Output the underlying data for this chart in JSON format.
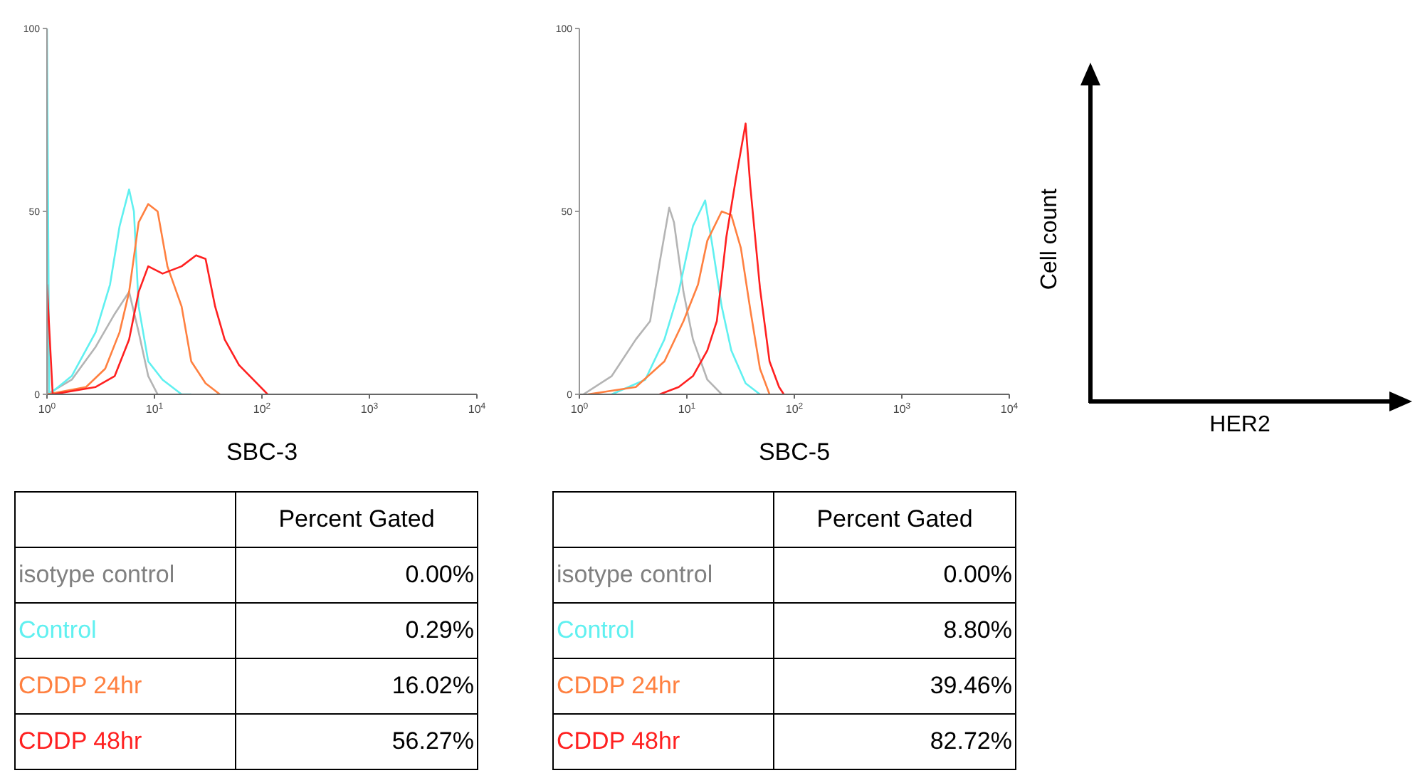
{
  "chart_data": [
    {
      "type": "line",
      "xlabel": "SBC-3",
      "log": "x",
      "xlim": [
        1,
        10000
      ],
      "xticks": [
        {
          "value": 1,
          "label": "10$^{0}$"
        },
        {
          "value": 10,
          "label": "10$^{1}$"
        },
        {
          "value": 100,
          "label": "10$^{2}$"
        },
        {
          "value": 1000,
          "label": "10$^{3}$"
        },
        {
          "value": 10000,
          "label": "10$^{4}$"
        }
      ],
      "ylim": [
        0,
        100
      ],
      "yticks": [
        0,
        50,
        100
      ],
      "marker": "none",
      "series": [
        {
          "color": "#b4b4b4",
          "x": [
            1,
            1.7,
            2.84,
            4.27,
            5.81,
            7.13,
            8.75,
            10.7
          ],
          "values": [
            0,
            4,
            13,
            22,
            28,
            17,
            5,
            0
          ]
        },
        {
          "color": "#60f0f0",
          "x": [
            1,
            1,
            1.05,
            1.7,
            2.84,
            3.86,
            4.74,
            5.81,
            6.44,
            7.13,
            8.75,
            11.9,
            17.9,
            22
          ],
          "values": [
            0,
            100,
            0,
            5,
            17,
            30,
            46,
            56,
            50,
            24,
            9,
            4,
            0,
            0
          ]
        },
        {
          "color": "#ff8040",
          "x": [
            1,
            2.31,
            3.48,
            4.74,
            5.81,
            7.13,
            8.75,
            10.7,
            13.2,
            17.9,
            22,
            29.9,
            40.6
          ],
          "values": [
            0,
            2,
            7,
            17,
            28,
            47,
            52,
            50,
            35,
            24,
            9,
            3,
            0
          ]
        },
        {
          "color": "#ff2020",
          "x": [
            1,
            1,
            1.13,
            2.84,
            4.27,
            5.81,
            7.13,
            8.75,
            11.9,
            17.9,
            24.4,
            29.9,
            36.7,
            45,
            61.2,
            83.2,
            113
          ],
          "values": [
            0,
            30,
            0,
            2,
            5,
            15,
            28,
            35,
            33,
            35,
            38,
            37,
            24,
            15,
            8,
            4,
            0
          ]
        }
      ]
    },
    {
      "type": "other",
      "title": "Percent Gated",
      "categories": [
        "isotype control",
        "Control",
        "CDDP  24hr",
        "CDDP  48hr"
      ],
      "colors": [
        "#808080",
        "#60f0f0",
        "#ff8040",
        "#ff2020"
      ],
      "value_labels": [
        "0.00%",
        "0.29%",
        "16.02%",
        "56.27%"
      ]
    },
    {
      "type": "line",
      "xlabel": "SBC-5",
      "log": "x",
      "xlim": [
        1,
        10000
      ],
      "xticks": [
        {
          "value": 1,
          "label": "10$^{0}$"
        },
        {
          "value": 10,
          "label": "10$^{1}$"
        },
        {
          "value": 100,
          "label": "10$^{2}$"
        },
        {
          "value": 1000,
          "label": "10$^{3}$"
        },
        {
          "value": 10000,
          "label": "10$^{4}$"
        }
      ],
      "ylim": [
        0,
        100
      ],
      "yticks": [
        0,
        50,
        100
      ],
      "marker": "none",
      "series": [
        {
          "color": "#b4b4b4",
          "x": [
            1.09,
            2,
            3.35,
            4.55,
            5.58,
            6.85,
            7.59,
            9.3,
            11.4,
            15.5,
            21.1
          ],
          "values": [
            0,
            5,
            15,
            20,
            36,
            51,
            47,
            28,
            15,
            4,
            0
          ]
        },
        {
          "color": "#60f0f0",
          "x": [
            2,
            4.1,
            6.18,
            8.4,
            11.4,
            14.8,
            17.2,
            21.1,
            25.9,
            35.2,
            47.9
          ],
          "values": [
            0,
            4,
            15,
            28,
            46,
            53,
            41,
            24,
            12,
            3,
            0
          ]
        },
        {
          "color": "#ff8040",
          "x": [
            1.2,
            3.35,
            6.18,
            9.3,
            12.7,
            15.5,
            21.1,
            25.9,
            31.8,
            39,
            47.9,
            58.8
          ],
          "values": [
            0,
            2,
            9,
            20,
            30,
            42,
            50,
            49,
            40,
            23,
            7,
            0
          ]
        },
        {
          "color": "#ff2020",
          "x": [
            5.58,
            8.4,
            11.4,
            15.5,
            19,
            23.3,
            28.6,
            35.2,
            38.9,
            47.9,
            58.8,
            72.1,
            79.9
          ],
          "values": [
            0,
            2,
            5,
            12,
            20,
            43,
            59,
            74,
            57,
            29,
            9,
            2,
            0
          ]
        }
      ]
    },
    {
      "type": "other",
      "title": "Percent Gated",
      "categories": [
        "isotype control",
        "Control",
        "CDDP  24hr",
        "CDDP  48hr"
      ],
      "colors": [
        "#808080",
        "#60f0f0",
        "#ff8040",
        "#ff2020"
      ],
      "value_labels": [
        "0.00%",
        "8.80%",
        "39.46%",
        "82.72%"
      ]
    },
    {
      "type": "other",
      "xlabel": "HER2",
      "ylabel": "Cell count"
    }
  ]
}
